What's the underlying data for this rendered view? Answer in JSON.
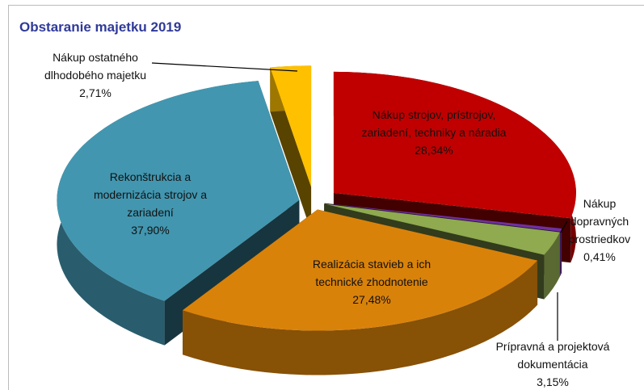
{
  "chart_data": {
    "type": "pie3d",
    "title": "Obstaranie majetku 2019",
    "categories": [
      "Nákup strojov, prístrojov, zariadení, techniky a náradia",
      "Nákup dopravných prostriedkov",
      "Prípravná a projektová dokumentácia",
      "Realizácia stavieb a ich technické zhodnotenie",
      "Rekonštrukcia a modernizácia strojov a zariadení",
      "Nákup ostatného dlhodobého majetku"
    ],
    "values": [
      28.34,
      0.41,
      3.15,
      27.48,
      37.9,
      2.71
    ],
    "value_labels": [
      "28,34%",
      "0,41%",
      "3,15%",
      "27,48%",
      "37,90%",
      "2,71%"
    ],
    "colors": [
      "#c00000",
      "#7030a0",
      "#8faa4f",
      "#d9820a",
      "#4296b0",
      "#ffc000"
    ]
  }
}
